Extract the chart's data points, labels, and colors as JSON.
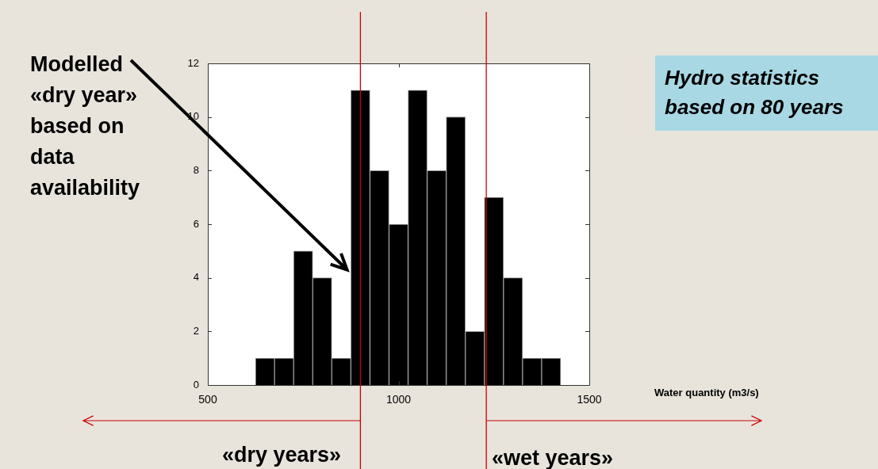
{
  "chart_data": {
    "type": "histogram",
    "bins": [
      625,
      675,
      725,
      775,
      825,
      875,
      925,
      975,
      1025,
      1075,
      1125,
      1175,
      1225,
      1275,
      1325,
      1375,
      1425
    ],
    "values": [
      1,
      1,
      5,
      4,
      1,
      11,
      8,
      6,
      11,
      8,
      10,
      2,
      7,
      4,
      1,
      1
    ],
    "color": "#000000",
    "xlim": [
      500,
      1500
    ],
    "xticks": [
      500,
      1000,
      1500
    ],
    "ylim": [
      0,
      12
    ],
    "yticks": [
      0,
      2,
      4,
      6,
      8,
      10,
      12
    ],
    "grid": false,
    "legend": false,
    "ref_lines": [
      {
        "axis": "x",
        "value": 900,
        "color": "#cc0000"
      },
      {
        "axis": "x",
        "value": 1230,
        "color": "#cc0000"
      }
    ],
    "annotations": [
      {
        "text": "Modelled «dry year» based on data availability",
        "x": 865,
        "y": 4.3
      },
      "Hydro statistics based on 80 years",
      "«dry years»",
      "«wet years»",
      "Water quantity (m3/s)"
    ]
  }
}
